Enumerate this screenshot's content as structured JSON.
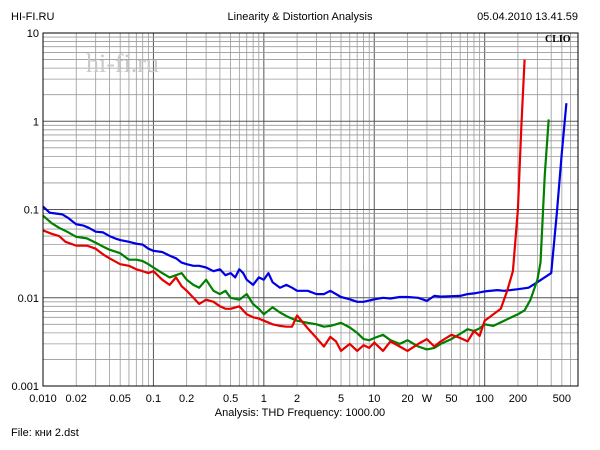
{
  "header": {
    "left": "HI-FI.RU",
    "center": "Linearity & Distortion Analysis",
    "right": "05.04.2010 13.41.59"
  },
  "footer": {
    "analysis": "Analysis: THD   Frequency: 1000.00",
    "file": "File: кни 2.dst"
  },
  "branding": {
    "clio": "CLIO",
    "watermark": "hi-fi.ru"
  },
  "chart_data": {
    "type": "line",
    "xscale": "log",
    "yscale": "log",
    "xlim": [
      0.01,
      700
    ],
    "ylim": [
      0.001,
      10
    ],
    "grid": true,
    "x_tick_labels": [
      {
        "v": 0.01,
        "t": "0.010"
      },
      {
        "v": 0.02,
        "t": "0.02"
      },
      {
        "v": 0.05,
        "t": "0.05"
      },
      {
        "v": 0.1,
        "t": "0.1"
      },
      {
        "v": 0.2,
        "t": "0.2"
      },
      {
        "v": 0.5,
        "t": "0.5"
      },
      {
        "v": 1,
        "t": "1"
      },
      {
        "v": 2,
        "t": "2"
      },
      {
        "v": 5,
        "t": "5"
      },
      {
        "v": 10,
        "t": "10"
      },
      {
        "v": 20,
        "t": "20"
      },
      {
        "v": 30,
        "t": "W"
      },
      {
        "v": 50,
        "t": "50"
      },
      {
        "v": 100,
        "t": "100"
      },
      {
        "v": 200,
        "t": "200"
      },
      {
        "v": 500,
        "t": "500"
      }
    ],
    "y_tick_labels": [
      {
        "v": 10,
        "t": "10"
      },
      {
        "v": 1,
        "t": "1"
      },
      {
        "v": 0.1,
        "t": "0.1"
      },
      {
        "v": 0.01,
        "t": "0.01"
      },
      {
        "v": 0.001,
        "t": "0.001"
      }
    ],
    "series": [
      {
        "color": "#0000e6",
        "points": [
          [
            0.01,
            0.108
          ],
          [
            0.0115,
            0.092
          ],
          [
            0.013,
            0.09
          ],
          [
            0.015,
            0.088
          ],
          [
            0.017,
            0.08
          ],
          [
            0.02,
            0.068
          ],
          [
            0.023,
            0.066
          ],
          [
            0.026,
            0.062
          ],
          [
            0.03,
            0.056
          ],
          [
            0.035,
            0.055
          ],
          [
            0.04,
            0.05
          ],
          [
            0.045,
            0.047
          ],
          [
            0.05,
            0.045
          ],
          [
            0.06,
            0.043
          ],
          [
            0.07,
            0.041
          ],
          [
            0.08,
            0.04
          ],
          [
            0.09,
            0.036
          ],
          [
            0.1,
            0.034
          ],
          [
            0.12,
            0.033
          ],
          [
            0.14,
            0.03
          ],
          [
            0.16,
            0.028
          ],
          [
            0.18,
            0.025
          ],
          [
            0.2,
            0.024
          ],
          [
            0.23,
            0.023
          ],
          [
            0.26,
            0.023
          ],
          [
            0.3,
            0.022
          ],
          [
            0.35,
            0.02
          ],
          [
            0.4,
            0.021
          ],
          [
            0.45,
            0.018
          ],
          [
            0.5,
            0.019
          ],
          [
            0.55,
            0.017
          ],
          [
            0.6,
            0.021
          ],
          [
            0.65,
            0.019
          ],
          [
            0.7,
            0.016
          ],
          [
            0.8,
            0.014
          ],
          [
            0.9,
            0.017
          ],
          [
            1.0,
            0.016
          ],
          [
            1.1,
            0.019
          ],
          [
            1.2,
            0.015
          ],
          [
            1.4,
            0.013
          ],
          [
            1.6,
            0.014
          ],
          [
            1.8,
            0.013
          ],
          [
            2.0,
            0.012
          ],
          [
            2.2,
            0.012
          ],
          [
            2.5,
            0.012
          ],
          [
            3.0,
            0.011
          ],
          [
            3.5,
            0.011
          ],
          [
            4.0,
            0.012
          ],
          [
            5.0,
            0.0102
          ],
          [
            6.0,
            0.0096
          ],
          [
            7.0,
            0.009
          ],
          [
            8.0,
            0.009
          ],
          [
            10,
            0.0096
          ],
          [
            12,
            0.01
          ],
          [
            14,
            0.0098
          ],
          [
            17,
            0.0102
          ],
          [
            20,
            0.0102
          ],
          [
            25,
            0.01
          ],
          [
            30,
            0.0092
          ],
          [
            35,
            0.0105
          ],
          [
            40,
            0.0103
          ],
          [
            50,
            0.0104
          ],
          [
            60,
            0.0105
          ],
          [
            70,
            0.011
          ],
          [
            80,
            0.0112
          ],
          [
            100,
            0.0118
          ],
          [
            130,
            0.0122
          ],
          [
            150,
            0.012
          ],
          [
            200,
            0.0125
          ],
          [
            250,
            0.013
          ],
          [
            300,
            0.015
          ],
          [
            400,
            0.019
          ],
          [
            450,
            0.09
          ],
          [
            500,
            0.45
          ],
          [
            550,
            1.6
          ]
        ]
      },
      {
        "color": "#008000",
        "points": [
          [
            0.01,
            0.085
          ],
          [
            0.012,
            0.07
          ],
          [
            0.014,
            0.062
          ],
          [
            0.017,
            0.055
          ],
          [
            0.02,
            0.049
          ],
          [
            0.025,
            0.047
          ],
          [
            0.03,
            0.042
          ],
          [
            0.035,
            0.038
          ],
          [
            0.04,
            0.035
          ],
          [
            0.05,
            0.032
          ],
          [
            0.06,
            0.027
          ],
          [
            0.07,
            0.027
          ],
          [
            0.08,
            0.026
          ],
          [
            0.09,
            0.024
          ],
          [
            0.1,
            0.022
          ],
          [
            0.12,
            0.019
          ],
          [
            0.14,
            0.017
          ],
          [
            0.16,
            0.018
          ],
          [
            0.18,
            0.019
          ],
          [
            0.2,
            0.016
          ],
          [
            0.23,
            0.014
          ],
          [
            0.26,
            0.013
          ],
          [
            0.3,
            0.016
          ],
          [
            0.35,
            0.012
          ],
          [
            0.4,
            0.011
          ],
          [
            0.45,
            0.012
          ],
          [
            0.5,
            0.01
          ],
          [
            0.6,
            0.0095
          ],
          [
            0.7,
            0.011
          ],
          [
            0.8,
            0.0085
          ],
          [
            0.9,
            0.0075
          ],
          [
            1.0,
            0.0065
          ],
          [
            1.2,
            0.0078
          ],
          [
            1.4,
            0.0068
          ],
          [
            1.6,
            0.0062
          ],
          [
            1.8,
            0.0058
          ],
          [
            2.0,
            0.0055
          ],
          [
            2.5,
            0.0052
          ],
          [
            3.0,
            0.005
          ],
          [
            3.5,
            0.0047
          ],
          [
            4.0,
            0.0048
          ],
          [
            4.5,
            0.005
          ],
          [
            5.0,
            0.0052
          ],
          [
            6.0,
            0.0046
          ],
          [
            7.0,
            0.004
          ],
          [
            8.0,
            0.0034
          ],
          [
            9.0,
            0.0033
          ],
          [
            10,
            0.0035
          ],
          [
            12,
            0.0038
          ],
          [
            14,
            0.0033
          ],
          [
            17,
            0.003
          ],
          [
            20,
            0.0033
          ],
          [
            25,
            0.0028
          ],
          [
            30,
            0.0026
          ],
          [
            35,
            0.0027
          ],
          [
            40,
            0.003
          ],
          [
            50,
            0.0034
          ],
          [
            60,
            0.0039
          ],
          [
            70,
            0.0044
          ],
          [
            80,
            0.0042
          ],
          [
            90,
            0.0045
          ],
          [
            100,
            0.005
          ],
          [
            120,
            0.0048
          ],
          [
            150,
            0.0055
          ],
          [
            200,
            0.0065
          ],
          [
            230,
            0.0072
          ],
          [
            260,
            0.0095
          ],
          [
            300,
            0.016
          ],
          [
            320,
            0.025
          ],
          [
            350,
            0.25
          ],
          [
            380,
            1.05
          ]
        ]
      },
      {
        "color": "#e60000",
        "points": [
          [
            0.01,
            0.058
          ],
          [
            0.012,
            0.053
          ],
          [
            0.014,
            0.05
          ],
          [
            0.016,
            0.043
          ],
          [
            0.02,
            0.039
          ],
          [
            0.025,
            0.039
          ],
          [
            0.03,
            0.036
          ],
          [
            0.035,
            0.031
          ],
          [
            0.04,
            0.028
          ],
          [
            0.05,
            0.024
          ],
          [
            0.06,
            0.023
          ],
          [
            0.07,
            0.021
          ],
          [
            0.08,
            0.02
          ],
          [
            0.09,
            0.019
          ],
          [
            0.1,
            0.02
          ],
          [
            0.12,
            0.016
          ],
          [
            0.14,
            0.014
          ],
          [
            0.16,
            0.017
          ],
          [
            0.18,
            0.0135
          ],
          [
            0.2,
            0.012
          ],
          [
            0.23,
            0.01
          ],
          [
            0.26,
            0.0085
          ],
          [
            0.3,
            0.0095
          ],
          [
            0.35,
            0.009
          ],
          [
            0.4,
            0.008
          ],
          [
            0.45,
            0.0075
          ],
          [
            0.5,
            0.0075
          ],
          [
            0.6,
            0.008
          ],
          [
            0.7,
            0.0065
          ],
          [
            0.8,
            0.006
          ],
          [
            0.9,
            0.0058
          ],
          [
            1.0,
            0.0055
          ],
          [
            1.2,
            0.005
          ],
          [
            1.4,
            0.0048
          ],
          [
            1.6,
            0.0047
          ],
          [
            1.8,
            0.0047
          ],
          [
            2.0,
            0.0063
          ],
          [
            2.5,
            0.0045
          ],
          [
            3.0,
            0.0035
          ],
          [
            3.5,
            0.0028
          ],
          [
            4.0,
            0.0036
          ],
          [
            4.5,
            0.0032
          ],
          [
            5.0,
            0.0025
          ],
          [
            6.0,
            0.003
          ],
          [
            7.0,
            0.0025
          ],
          [
            8.0,
            0.0029
          ],
          [
            9.0,
            0.0027
          ],
          [
            10,
            0.0031
          ],
          [
            12,
            0.0025
          ],
          [
            14,
            0.0032
          ],
          [
            17,
            0.0028
          ],
          [
            20,
            0.0025
          ],
          [
            25,
            0.003
          ],
          [
            30,
            0.0034
          ],
          [
            35,
            0.0028
          ],
          [
            40,
            0.0032
          ],
          [
            50,
            0.0038
          ],
          [
            60,
            0.0035
          ],
          [
            70,
            0.0032
          ],
          [
            80,
            0.0042
          ],
          [
            90,
            0.0037
          ],
          [
            100,
            0.0055
          ],
          [
            120,
            0.0065
          ],
          [
            140,
            0.0075
          ],
          [
            160,
            0.012
          ],
          [
            180,
            0.02
          ],
          [
            200,
            0.1
          ],
          [
            215,
            0.9
          ],
          [
            230,
            5.0
          ]
        ]
      }
    ]
  }
}
